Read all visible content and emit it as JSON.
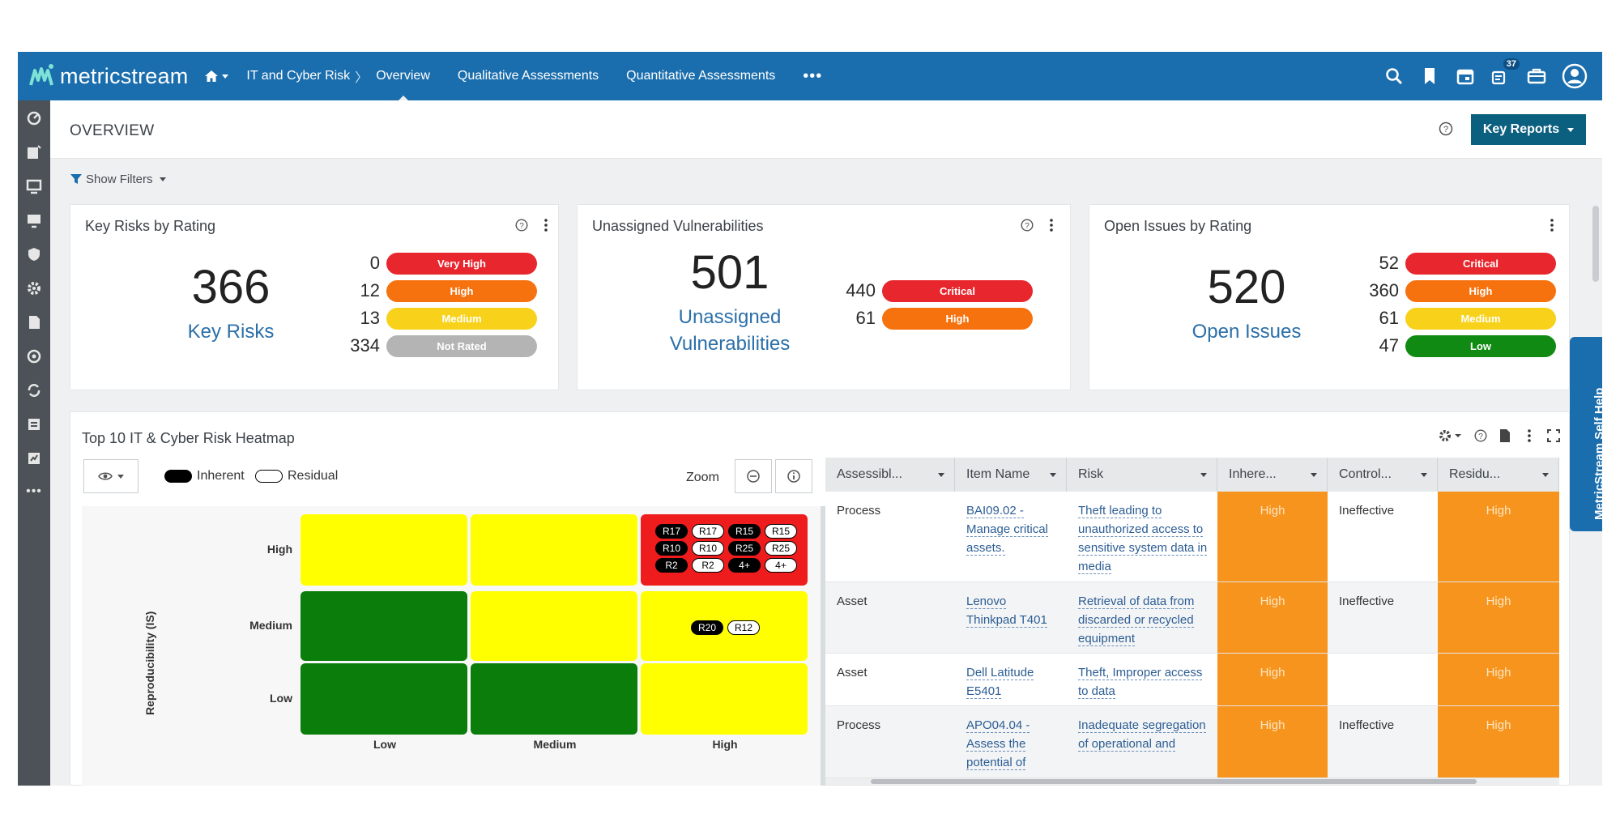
{
  "app": {
    "brand": "metricstream"
  },
  "nav": {
    "breadcrumb": "IT and Cyber Risk",
    "tabs": [
      "Overview",
      "Qualitative Assessments",
      "Quantitative Assessments"
    ],
    "more": "•••",
    "notification_count": "37"
  },
  "header": {
    "title": "OVERVIEW",
    "key_reports": "Key Reports"
  },
  "filters": {
    "label": "Show Filters"
  },
  "cards": {
    "key_risks": {
      "title": "Key Risks by Rating",
      "total": "366",
      "label": "Key Risks",
      "ratings": [
        {
          "count": "0",
          "label": "Very High",
          "color": "#e8262d"
        },
        {
          "count": "12",
          "label": "High",
          "color": "#f6720f"
        },
        {
          "count": "13",
          "label": "Medium",
          "color": "#f8d21a"
        },
        {
          "count": "334",
          "label": "Not Rated",
          "color": "#b4b4b4"
        }
      ]
    },
    "vulnerabilities": {
      "title": "Unassigned Vulnerabilities",
      "total": "501",
      "label_line1": "Unassigned",
      "label_line2": "Vulnerabilities",
      "ratings": [
        {
          "count": "440",
          "label": "Critical",
          "color": "#e8262d"
        },
        {
          "count": "61",
          "label": "High",
          "color": "#f6720f"
        }
      ]
    },
    "issues": {
      "title": "Open Issues by Rating",
      "total": "520",
      "label": "Open Issues",
      "ratings": [
        {
          "count": "52",
          "label": "Critical",
          "color": "#e8262d"
        },
        {
          "count": "360",
          "label": "High",
          "color": "#f6720f"
        },
        {
          "count": "61",
          "label": "Medium",
          "color": "#f8d21a"
        },
        {
          "count": "47",
          "label": "Low",
          "color": "#108a12"
        }
      ]
    }
  },
  "heatmap": {
    "title": "Top 10 IT & Cyber Risk Heatmap",
    "legend_inherent": "Inherent",
    "legend_residual": "Residual",
    "zoom_label": "Zoom",
    "y_axis_label": "Reproducibility (IS)",
    "rows": [
      "High",
      "Medium",
      "Low"
    ],
    "cols": [
      "Low",
      "Medium",
      "High"
    ],
    "colors": {
      "red": "#ee1c1c",
      "yellow": "#ffff00",
      "green": "#0a7d0a"
    },
    "grid": [
      [
        "yellow",
        "yellow",
        "red"
      ],
      [
        "green",
        "yellow",
        "yellow"
      ],
      [
        "green",
        "green",
        "yellow"
      ]
    ],
    "high_high_chips": [
      [
        {
          "t": "R17",
          "k": "inh"
        },
        {
          "t": "R17",
          "k": "res"
        },
        {
          "t": "R15",
          "k": "inh"
        },
        {
          "t": "R15",
          "k": "res"
        }
      ],
      [
        {
          "t": "R10",
          "k": "inh"
        },
        {
          "t": "R10",
          "k": "res"
        },
        {
          "t": "R25",
          "k": "inh"
        },
        {
          "t": "R25",
          "k": "res"
        }
      ],
      [
        {
          "t": "R2",
          "k": "inh"
        },
        {
          "t": "R2",
          "k": "res"
        },
        {
          "t": "4+",
          "k": "inh"
        },
        {
          "t": "4+",
          "k": "res"
        }
      ]
    ],
    "medium_high_chips": [
      {
        "t": "R20",
        "k": "inh"
      },
      {
        "t": "R12",
        "k": "res"
      }
    ]
  },
  "table": {
    "columns": [
      "Assessibl...",
      "Item Name",
      "Risk",
      "Inhere...",
      "Control...",
      "Residu..."
    ],
    "rows": [
      {
        "type": "Process",
        "item": "BAI09.02 - Manage critical assets.",
        "risk": "Theft leading to unauthorized access to sensitive system data in media",
        "inherent": "High",
        "control": "Ineffective",
        "residual": "High"
      },
      {
        "type": "Asset",
        "item": "Lenovo Thinkpad T401",
        "risk": "Retrieval of data from discarded or recycled equipment",
        "inherent": "High",
        "control": "Ineffective",
        "residual": "High"
      },
      {
        "type": "Asset",
        "item": "Dell Latitude E5401",
        "risk": "Theft, Improper access to data",
        "inherent": "High",
        "control": "",
        "residual": "High"
      },
      {
        "type": "Process",
        "item": "APO04.04 - Assess the potential of",
        "risk": "Inadequate segregation of operational and",
        "inherent": "High",
        "control": "Ineffective",
        "residual": "High"
      }
    ]
  },
  "self_help": "MetricStream Self Help"
}
